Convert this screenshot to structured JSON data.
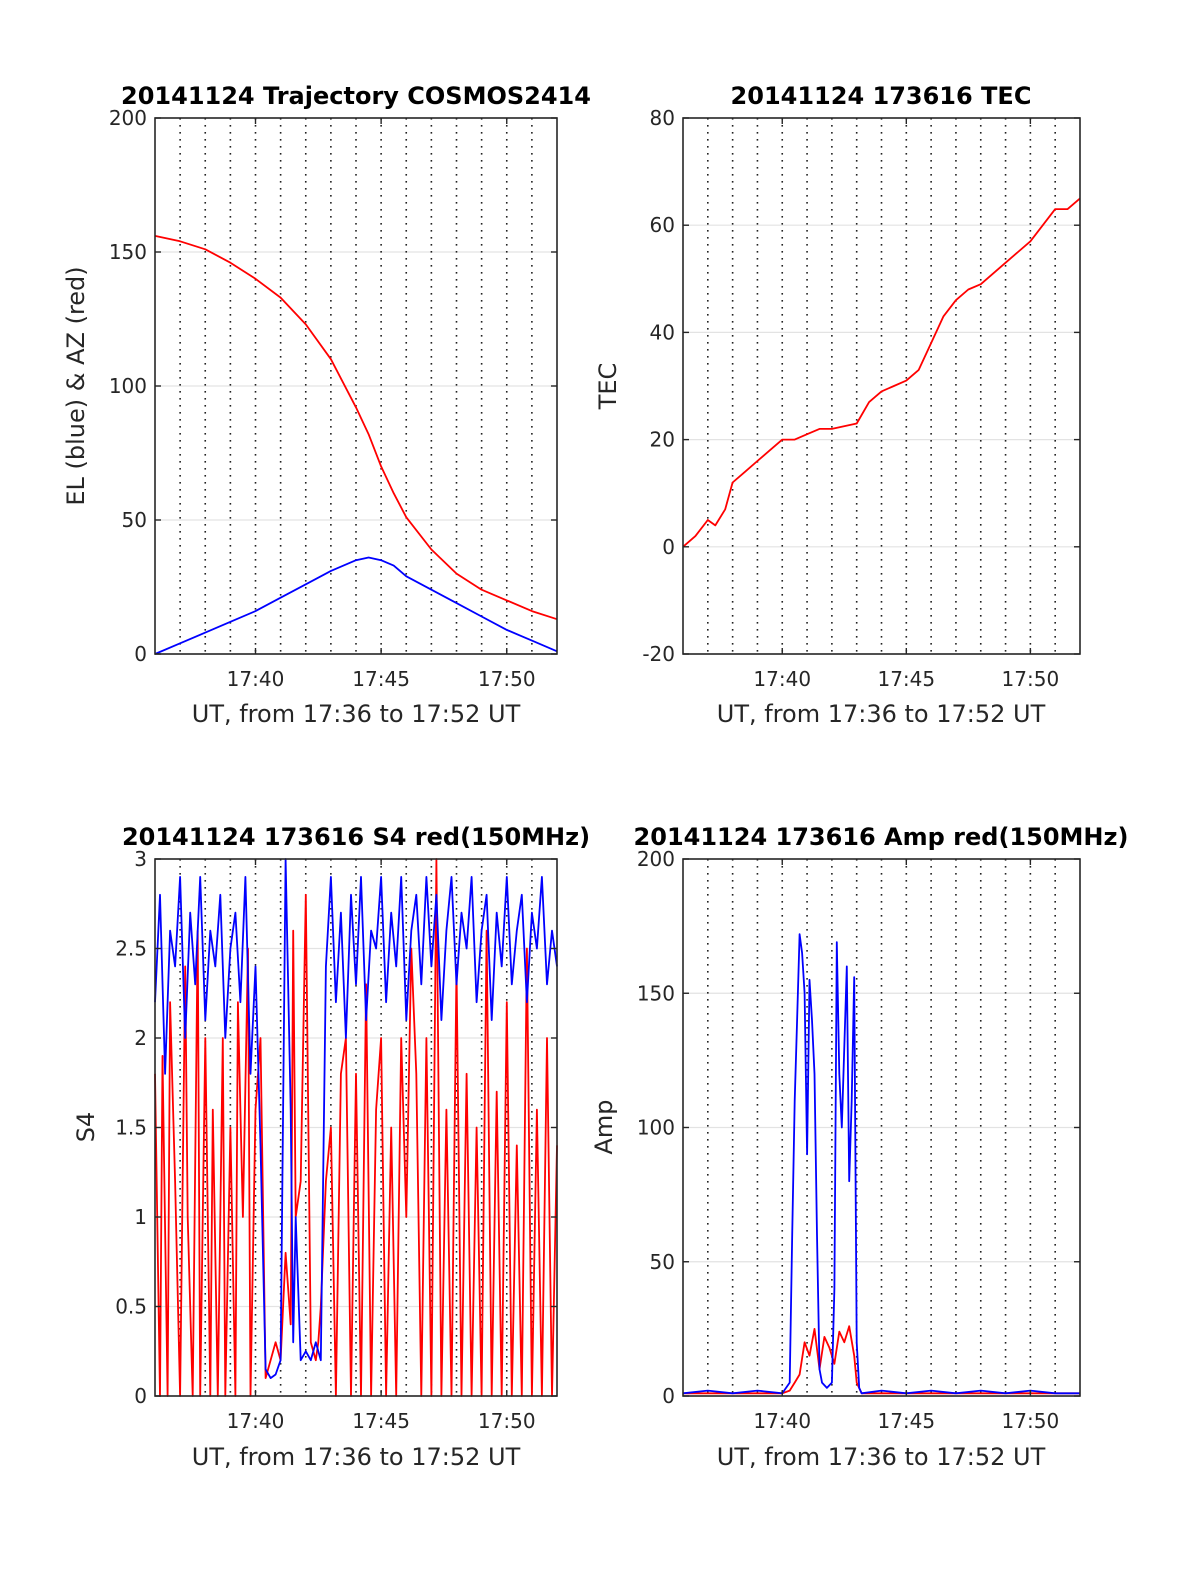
{
  "chart_data": [
    {
      "type": "line",
      "title": "20141124 Trajectory COSMOS2414",
      "xlabel": "UT, from 17:36 to 17:52 UT",
      "ylabel": "EL (blue) & AZ (red)",
      "xlim": [
        0,
        16
      ],
      "ylim": [
        0,
        200
      ],
      "yticks": [
        0,
        50,
        100,
        150,
        200
      ],
      "xticks": [
        4,
        9,
        14
      ],
      "xticklabels": [
        "17:40",
        "17:45",
        "17:50"
      ],
      "grid_y": true,
      "minute_lines": "dotted",
      "series": [
        {
          "color": "#ff0000",
          "x": [
            0,
            1,
            2,
            3,
            4,
            5,
            6,
            7,
            8,
            8.5,
            9,
            9.5,
            10,
            11,
            12,
            13,
            14,
            15,
            16
          ],
          "y": [
            156,
            154,
            151,
            146,
            140,
            133,
            123,
            110,
            92,
            82,
            70,
            60,
            51,
            39,
            30,
            24,
            20,
            16,
            13
          ]
        },
        {
          "color": "#0000ff",
          "x": [
            0,
            1,
            2,
            3,
            4,
            5,
            6,
            7,
            8,
            8.5,
            9,
            9.5,
            10,
            11,
            12,
            13,
            14,
            15,
            16
          ],
          "y": [
            0,
            4,
            8,
            12,
            16,
            21,
            26,
            31,
            35,
            36,
            35,
            33,
            29,
            24,
            19,
            14,
            9,
            5,
            1
          ]
        }
      ]
    },
    {
      "type": "line",
      "title": "20141124 173616 TEC",
      "xlabel": "UT, from 17:36 to 17:52 UT",
      "ylabel": "TEC",
      "xlim": [
        0,
        16
      ],
      "ylim": [
        -20,
        80
      ],
      "yticks": [
        -20,
        0,
        20,
        40,
        60,
        80
      ],
      "xticks": [
        4,
        9,
        14
      ],
      "xticklabels": [
        "17:40",
        "17:45",
        "17:50"
      ],
      "grid_y": true,
      "minute_lines": "dotted",
      "series": [
        {
          "color": "#ff0000",
          "x": [
            0,
            0.5,
            1,
            1.3,
            1.7,
            2,
            2.5,
            3,
            3.5,
            4,
            4.5,
            5,
            5.5,
            6,
            7,
            7.5,
            8,
            8.5,
            9,
            9.5,
            10,
            10.5,
            11,
            11.5,
            12,
            12.5,
            13,
            13.5,
            14,
            14.5,
            15,
            15.5,
            16
          ],
          "y": [
            0,
            2,
            5,
            4,
            7,
            12,
            14,
            16,
            18,
            20,
            20,
            21,
            22,
            22,
            23,
            27,
            29,
            30,
            31,
            33,
            38,
            43,
            46,
            48,
            49,
            51,
            53,
            55,
            57,
            60,
            63,
            63,
            65
          ]
        }
      ]
    },
    {
      "type": "line",
      "title": "20141124 173616 S4 red(150MHz)",
      "xlabel": "UT, from 17:36 to 17:52 UT",
      "ylabel": "S4",
      "xlim": [
        0,
        16
      ],
      "ylim": [
        0,
        3
      ],
      "yticks": [
        0,
        0.5,
        1,
        1.5,
        2,
        2.5,
        3
      ],
      "yticklabels": [
        "0",
        "0.5",
        "1",
        "1.5",
        "2",
        "2.5",
        "3"
      ],
      "xticks": [
        4,
        9,
        14
      ],
      "xticklabels": [
        "17:40",
        "17:45",
        "17:50"
      ],
      "grid_y": true,
      "minute_lines": "dotted",
      "series": [
        {
          "color": "#ff0000",
          "x": [
            0,
            0.2,
            0.3,
            0.5,
            0.6,
            0.8,
            1.0,
            1.2,
            1.3,
            1.5,
            1.7,
            1.8,
            2.0,
            2.2,
            2.3,
            2.5,
            2.7,
            2.8,
            3.0,
            3.2,
            3.3,
            3.5,
            3.7,
            3.8,
            4.0,
            4.2,
            4.4,
            4.6,
            4.8,
            5.0,
            5.2,
            5.4,
            5.5,
            5.6,
            5.8,
            6.0,
            6.2,
            6.4,
            6.5,
            6.6,
            6.8,
            7.0,
            7.2,
            7.4,
            7.6,
            7.8,
            8.0,
            8.2,
            8.4,
            8.6,
            8.8,
            9.0,
            9.2,
            9.4,
            9.6,
            9.8,
            10.0,
            10.2,
            10.4,
            10.6,
            10.8,
            11.0,
            11.2,
            11.4,
            11.6,
            11.8,
            12.0,
            12.2,
            12.4,
            12.6,
            12.8,
            13.0,
            13.2,
            13.4,
            13.6,
            13.8,
            14.0,
            14.2,
            14.4,
            14.6,
            14.8,
            15.0,
            15.2,
            15.4,
            15.6,
            15.8,
            16.0
          ],
          "y": [
            1.8,
            0.0,
            1.9,
            0.0,
            2.2,
            1.2,
            0.0,
            2.4,
            1.0,
            0.0,
            2.6,
            0.0,
            2.0,
            0.0,
            1.6,
            0.0,
            2.0,
            0.0,
            1.5,
            0.0,
            2.2,
            1.0,
            2.5,
            0.0,
            1.6,
            2.0,
            0.1,
            0.2,
            0.3,
            0.2,
            0.8,
            0.4,
            2.6,
            1.0,
            1.2,
            2.8,
            0.3,
            0.2,
            0.3,
            0.5,
            1.2,
            1.5,
            0.0,
            1.8,
            2.0,
            0.0,
            1.8,
            0.0,
            2.3,
            0.0,
            1.6,
            2.0,
            0.0,
            1.5,
            0.0,
            2.0,
            1.0,
            2.5,
            1.8,
            0.0,
            2.0,
            0.0,
            3.0,
            0.0,
            1.6,
            0.0,
            2.4,
            0.0,
            1.8,
            0.0,
            1.5,
            0.0,
            2.6,
            0.0,
            1.7,
            0.0,
            2.2,
            0.0,
            1.4,
            0.0,
            2.5,
            0.0,
            1.6,
            0.0,
            2.0,
            0.0,
            1.4
          ]
        },
        {
          "color": "#0000ff",
          "x": [
            0,
            0.2,
            0.4,
            0.6,
            0.8,
            1.0,
            1.2,
            1.4,
            1.6,
            1.8,
            2.0,
            2.2,
            2.4,
            2.6,
            2.8,
            3.0,
            3.2,
            3.4,
            3.6,
            3.8,
            4.0,
            4.2,
            4.4,
            4.6,
            4.8,
            5.0,
            5.2,
            5.4,
            5.5,
            5.6,
            5.8,
            6.0,
            6.2,
            6.4,
            6.6,
            6.8,
            7.0,
            7.2,
            7.4,
            7.6,
            7.8,
            8.0,
            8.2,
            8.4,
            8.6,
            8.8,
            9.0,
            9.2,
            9.4,
            9.6,
            9.8,
            10.0,
            10.2,
            10.4,
            10.6,
            10.8,
            11.0,
            11.2,
            11.4,
            11.6,
            11.8,
            12.0,
            12.2,
            12.4,
            12.6,
            12.8,
            13.0,
            13.2,
            13.4,
            13.6,
            13.8,
            14.0,
            14.2,
            14.4,
            14.6,
            14.8,
            15.0,
            15.2,
            15.4,
            15.6,
            15.8,
            16.0
          ],
          "y": [
            2.2,
            2.8,
            1.8,
            2.6,
            2.4,
            2.9,
            2.0,
            2.7,
            2.3,
            2.9,
            2.1,
            2.6,
            2.4,
            2.8,
            2.0,
            2.5,
            2.7,
            2.2,
            2.9,
            1.8,
            2.4,
            1.4,
            0.15,
            0.1,
            0.12,
            0.2,
            3.0,
            1.6,
            0.3,
            1.0,
            0.2,
            0.25,
            0.2,
            0.3,
            0.2,
            2.4,
            2.9,
            2.2,
            2.7,
            2.0,
            2.8,
            2.3,
            2.9,
            2.1,
            2.6,
            2.5,
            2.9,
            2.2,
            2.7,
            2.4,
            2.9,
            2.1,
            2.6,
            2.8,
            2.3,
            2.9,
            2.4,
            2.8,
            2.1,
            2.6,
            2.9,
            2.3,
            2.7,
            2.5,
            2.9,
            2.2,
            2.6,
            2.8,
            2.1,
            2.7,
            2.4,
            2.9,
            2.3,
            2.6,
            2.8,
            2.2,
            2.7,
            2.5,
            2.9,
            2.3,
            2.6,
            2.4
          ]
        }
      ]
    },
    {
      "type": "line",
      "title": "20141124 173616 Amp red(150MHz)",
      "xlabel": "UT, from 17:36 to 17:52 UT",
      "ylabel": "Amp",
      "xlim": [
        0,
        16
      ],
      "ylim": [
        0,
        200
      ],
      "yticks": [
        0,
        50,
        100,
        150,
        200
      ],
      "xticks": [
        4,
        9,
        14
      ],
      "xticklabels": [
        "17:40",
        "17:45",
        "17:50"
      ],
      "grid_y": true,
      "minute_lines": "dotted",
      "series": [
        {
          "color": "#ff0000",
          "x": [
            0,
            4.0,
            4.3,
            4.5,
            4.7,
            4.9,
            5.1,
            5.3,
            5.5,
            5.7,
            5.9,
            6.1,
            6.3,
            6.5,
            6.7,
            6.9,
            7.0,
            7.2,
            16
          ],
          "y": [
            1,
            1,
            2,
            5,
            8,
            20,
            15,
            25,
            10,
            22,
            18,
            12,
            24,
            20,
            26,
            15,
            5,
            1,
            1
          ]
        },
        {
          "color": "#0000ff",
          "x": [
            0,
            1.0,
            2.0,
            3.0,
            4.0,
            4.3,
            4.4,
            4.5,
            4.6,
            4.7,
            4.8,
            4.9,
            5.0,
            5.1,
            5.2,
            5.3,
            5.4,
            5.5,
            5.6,
            5.8,
            6.0,
            6.1,
            6.2,
            6.3,
            6.4,
            6.5,
            6.6,
            6.7,
            6.8,
            6.9,
            7.0,
            7.1,
            7.2,
            8.0,
            9.0,
            10.0,
            11.0,
            12.0,
            13.0,
            14.0,
            15.0,
            16.0
          ],
          "y": [
            1,
            2,
            1,
            2,
            1,
            5,
            60,
            110,
            140,
            172,
            165,
            150,
            90,
            155,
            140,
            120,
            60,
            10,
            5,
            3,
            5,
            40,
            169,
            120,
            100,
            130,
            160,
            80,
            110,
            156,
            20,
            3,
            1,
            2,
            1,
            2,
            1,
            2,
            1,
            2,
            1,
            1
          ]
        }
      ]
    }
  ]
}
